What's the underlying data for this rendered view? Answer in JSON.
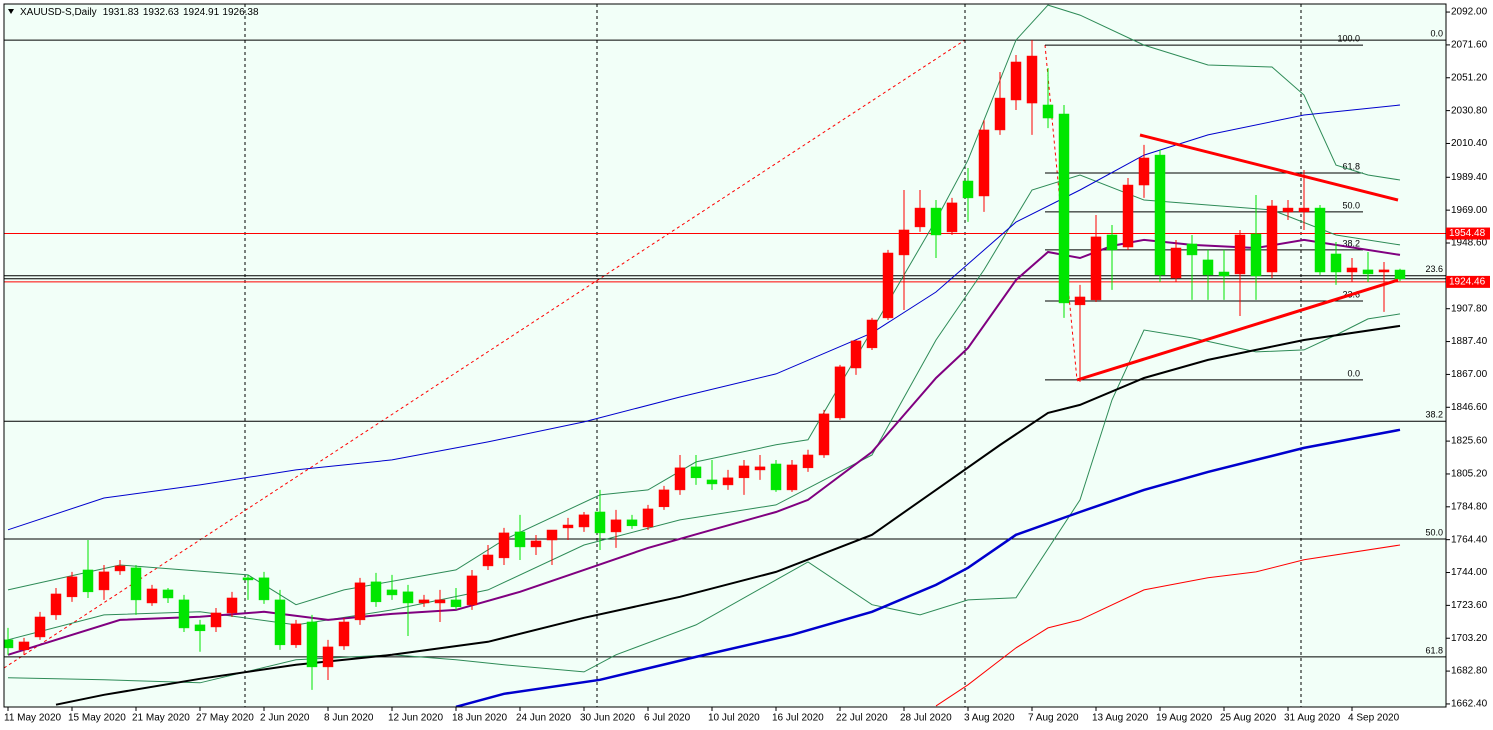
{
  "chart_data": {
    "type": "candlestick",
    "title": "XAUUSD-S,Daily",
    "categories": [
      "11 May 2020",
      null,
      null,
      null,
      "15 May 2020",
      null,
      null,
      null,
      "21 May 2020",
      null,
      null,
      null,
      "27 May 2020",
      null,
      null,
      null,
      "2 Jun 2020",
      null,
      null,
      null,
      "8 Jun 2020",
      null,
      null,
      null,
      "12 Jun 2020",
      null,
      null,
      null,
      "18 Jun 2020",
      null,
      null,
      null,
      "24 Jun 2020",
      null,
      null,
      null,
      "30 Jun 2020",
      null,
      null,
      null,
      "6 Jul 2020",
      null,
      null,
      null,
      "10 Jul 2020",
      null,
      null,
      null,
      "16 Jul 2020",
      null,
      null,
      null,
      "22 Jul 2020",
      null,
      null,
      null,
      "28 Jul 2020",
      null,
      null,
      null,
      "3 Aug 2020",
      null,
      null,
      null,
      "7 Aug 2020",
      null,
      null,
      null,
      "13 Aug 2020",
      null,
      null,
      null,
      "19 Aug 2020",
      null,
      null,
      null,
      "25 Aug 2020",
      null,
      null,
      null,
      "31 Aug 2020",
      null,
      null,
      null,
      "4 Sep 2020",
      null,
      null,
      null
    ],
    "ohlc": {
      "open": [
        1702.2,
        1696.0,
        1704.0,
        1717.7,
        1728.9,
        1745.6,
        1733.2,
        1745.0,
        1746.9,
        1725.1,
        1733.2,
        1727.0,
        1711.5,
        1710.2,
        1718.9,
        1740.7,
        1740.7,
        1727.0,
        1699.1,
        1713.3,
        1685.4,
        1698.4,
        1714.6,
        1738.2,
        1733.2,
        1732.0,
        1725.1,
        1725.1,
        1727.0,
        1723.9,
        1748.1,
        1753.1,
        1769.2,
        1759.9,
        1764.2,
        1771.7,
        1772.3,
        1781.6,
        1769.2,
        1776.7,
        1772.3,
        1784.8,
        1795.3,
        1809.6,
        1801.5,
        1798.4,
        1802.8,
        1807.7,
        1811.4,
        1795.3,
        1809.0,
        1817.0,
        1840.0,
        1871.0,
        1883.5,
        1902.1,
        1941.2,
        1958.6,
        1970.3,
        1955.5,
        1987.1,
        1977.8,
        2018.8,
        2037.4,
        2035.5,
        2034.3,
        2028.7,
        1910.2,
        1913.3,
        1953.6,
        1946.1,
        1984.6,
        2003.2,
        1926.9,
        1948.0,
        1938.1,
        1930.6,
        1929.4,
        1954.2,
        1930.6,
        1967.9,
        1967.9,
        1970.3,
        1941.8,
        1930.6,
        1931.9,
        1930.6,
        1931.83
      ],
      "high": [
        1709.6,
        1703.4,
        1719.6,
        1734.4,
        1744.4,
        1764.2,
        1748.7,
        1751.8,
        1748.7,
        1736.3,
        1734.4,
        1730.1,
        1714.6,
        1722.0,
        1732.0,
        1742.5,
        1744.4,
        1733.2,
        1714.6,
        1717.7,
        1702.2,
        1715.8,
        1740.7,
        1743.8,
        1742.5,
        1736.3,
        1730.1,
        1733.2,
        1734.4,
        1745.6,
        1761.1,
        1771.7,
        1779.8,
        1767.3,
        1770.4,
        1777.9,
        1781.6,
        1795.3,
        1782.9,
        1779.8,
        1786.0,
        1797.8,
        1817.0,
        1817.0,
        1813.9,
        1807.7,
        1813.9,
        1817.0,
        1813.9,
        1813.9,
        1820.2,
        1845.0,
        1872.9,
        1888.4,
        1902.1,
        1944.3,
        1981.5,
        1981.5,
        1975.3,
        1976.6,
        1995.2,
        2024.9,
        2054.8,
        2065.3,
        2074.6,
        2057.3,
        2034.3,
        1922.6,
        1966.0,
        1959.8,
        1989.0,
        2009.5,
        2006.4,
        1950.5,
        1953.6,
        1944.3,
        1944.3,
        1956.7,
        1978.4,
        1975.3,
        1975.3,
        1993.9,
        1972.2,
        1949.2,
        1939.3,
        1943.0,
        1936.8,
        1932.63
      ],
      "low": [
        1692.9,
        1692.9,
        1702.2,
        1714.6,
        1725.8,
        1728.2,
        1727.0,
        1742.5,
        1717.7,
        1723.3,
        1725.1,
        1707.1,
        1694.8,
        1707.1,
        1716.4,
        1727.0,
        1724.5,
        1696.0,
        1697.2,
        1671.1,
        1677.3,
        1696.0,
        1711.5,
        1722.7,
        1727.0,
        1704.6,
        1722.7,
        1713.3,
        1720.8,
        1720.8,
        1745.6,
        1748.7,
        1751.8,
        1754.9,
        1748.7,
        1764.2,
        1769.2,
        1758.0,
        1759.3,
        1771.1,
        1770.4,
        1782.9,
        1792.2,
        1798.4,
        1795.3,
        1795.3,
        1792.2,
        1801.5,
        1794.1,
        1794.1,
        1806.5,
        1815.2,
        1838.8,
        1866.7,
        1882.2,
        1900.8,
        1907.0,
        1955.5,
        1939.3,
        1953.6,
        1961.7,
        1967.9,
        2015.7,
        2031.2,
        2015.7,
        2019.9,
        1902.1,
        1862.4,
        1912.0,
        1919.5,
        1944.3,
        1976.6,
        1924.4,
        1924.4,
        1913.3,
        1913.3,
        1913.3,
        1903.3,
        1913.3,
        1926.9,
        1962.9,
        1956.7,
        1928.8,
        1922.6,
        1924.4,
        1924.4,
        1905.8,
        1924.91
      ],
      "close": [
        1697.2,
        1700.9,
        1716.4,
        1730.7,
        1741.3,
        1732.0,
        1744.4,
        1748.1,
        1727.0,
        1733.8,
        1728.2,
        1709.6,
        1707.8,
        1718.9,
        1728.2,
        1739.4,
        1727.0,
        1699.1,
        1712.1,
        1685.4,
        1697.8,
        1713.3,
        1737.6,
        1725.8,
        1730.1,
        1725.1,
        1727.0,
        1727.0,
        1722.7,
        1741.9,
        1754.9,
        1768.6,
        1759.9,
        1763.6,
        1770.4,
        1773.5,
        1779.8,
        1768.6,
        1776.7,
        1773.0,
        1783.5,
        1795.3,
        1809.0,
        1802.8,
        1799.0,
        1802.8,
        1810.2,
        1809.6,
        1795.3,
        1810.8,
        1817.0,
        1842.5,
        1871.7,
        1887.8,
        1900.8,
        1942.4,
        1956.7,
        1970.3,
        1953.6,
        1973.5,
        1976.6,
        2018.8,
        2038.6,
        2061.0,
        2064.7,
        2026.2,
        1911.4,
        1915.1,
        1952.4,
        1944.3,
        1984.6,
        2001.4,
        1928.8,
        1945.5,
        1941.2,
        1928.8,
        1928.2,
        1953.6,
        1928.2,
        1971.6,
        1970.3,
        1970.3,
        1930.6,
        1930.6,
        1933.1,
        1929.4,
        1931.9,
        1926.38
      ]
    },
    "up_color": "#ff0000",
    "down_color": "#00e600",
    "indicators": [
      {
        "color": "#2e8b57",
        "width": 1,
        "x": [
          0,
          7,
          15,
          18,
          21,
          28,
          31,
          37,
          40,
          43,
          48,
          50,
          54,
          58,
          60,
          63,
          65,
          67,
          71,
          75,
          79,
          81,
          83,
          85,
          87
        ],
        "values": [
          1733.2,
          1748.7,
          1742.5,
          1724.0,
          1733.2,
          1745.6,
          1764.3,
          1792.2,
          1795.3,
          1812.7,
          1823.3,
          1826.4,
          1894.6,
          1962.9,
          2000.1,
          2074.6,
          2096.3,
          2090.1,
          2071.5,
          2059.1,
          2057.9,
          2040.5,
          1997.0,
          1990.8,
          1987.7
        ]
      },
      {
        "color": "#2e8b57",
        "width": 1,
        "x": [
          0,
          6,
          12,
          18,
          24,
          30,
          36,
          42,
          48,
          54,
          58,
          61,
          64,
          67,
          71,
          75,
          79,
          83,
          87
        ],
        "values": [
          1702.2,
          1717.7,
          1719.6,
          1711.5,
          1720.8,
          1733.2,
          1761.1,
          1776.7,
          1786.0,
          1817.0,
          1888.4,
          1931.9,
          1981.5,
          1990.8,
          1975.3,
          1972.2,
          1969.1,
          1953.6,
          1947.4
        ]
      },
      {
        "color": "#2e8b57",
        "width": 1,
        "x": [
          0,
          6,
          12,
          18,
          24,
          28,
          31,
          36,
          38,
          43,
          48,
          50,
          54,
          57,
          60,
          63,
          67,
          69,
          71,
          74,
          78,
          81,
          83,
          85,
          87
        ],
        "values": [
          1678.6,
          1677.4,
          1675.5,
          1689.8,
          1692.9,
          1689.8,
          1686.7,
          1682.3,
          1692.9,
          1711.5,
          1739.4,
          1750.6,
          1724.0,
          1717.7,
          1727.0,
          1728.3,
          1789.1,
          1851.2,
          1894.6,
          1889.7,
          1881.0,
          1882.2,
          1891.5,
          1901.5,
          1904.6
        ]
      },
      {
        "color": "#800080",
        "width": 2,
        "x": [
          0,
          7,
          12,
          16,
          20,
          24,
          28,
          32,
          36,
          40,
          44,
          48,
          50,
          54,
          58,
          60,
          63,
          65,
          67,
          69,
          71,
          74,
          78,
          81,
          87
        ],
        "values": [
          1692.9,
          1714.6,
          1716.5,
          1719.6,
          1714.6,
          1718.3,
          1720.8,
          1732.0,
          1745.6,
          1759.3,
          1770.5,
          1781.6,
          1789.1,
          1818.9,
          1864.8,
          1883.4,
          1925.6,
          1943.0,
          1939.3,
          1946.8,
          1950.5,
          1947.4,
          1945.5,
          1950.5,
          1941.2
        ]
      },
      {
        "color": "#000000",
        "width": 2,
        "x": [
          3,
          6,
          12,
          18,
          24,
          30,
          36,
          42,
          48,
          54,
          58,
          62,
          65,
          67,
          71,
          75,
          78,
          81,
          87
        ],
        "values": [
          1661.9,
          1668.1,
          1678.0,
          1686.7,
          1692.9,
          1701.0,
          1715.9,
          1728.9,
          1744.4,
          1767.4,
          1795.3,
          1823.2,
          1843.1,
          1848.1,
          1864.8,
          1876.0,
          1882.2,
          1888.4,
          1897.1
        ]
      },
      {
        "color": "#0000cd",
        "width": 1,
        "x": [
          0,
          6,
          12,
          18,
          24,
          30,
          36,
          42,
          48,
          54,
          58,
          63,
          67,
          71,
          75,
          81,
          87
        ],
        "values": [
          1770.5,
          1790.3,
          1798.4,
          1807.7,
          1813.9,
          1825.1,
          1837.5,
          1853.0,
          1867.3,
          1892.8,
          1918.2,
          1961.6,
          1981.5,
          2003.2,
          2015.7,
          2028.1,
          2034.3
        ]
      },
      {
        "color": "#0000cd",
        "width": 2.5,
        "x": [
          28,
          31,
          37,
          43,
          49,
          54,
          58,
          60,
          63,
          67,
          71,
          75,
          78,
          81,
          87
        ],
        "values": [
          1660.6,
          1668.7,
          1677.4,
          1691.6,
          1705.3,
          1719.6,
          1736.3,
          1746.9,
          1767.4,
          1781.6,
          1795.3,
          1806.5,
          1813.9,
          1821.4,
          1832.6
        ]
      },
      {
        "color": "#ff0000",
        "width": 1,
        "x": [
          58,
          60,
          63,
          65,
          67,
          71,
          75,
          78,
          81,
          87
        ],
        "values": [
          1661.2,
          1674.3,
          1697.2,
          1709.6,
          1714.6,
          1733.2,
          1740.7,
          1744.4,
          1751.9,
          1761.1
        ]
      }
    ],
    "fibonacci": [
      {
        "levels": [
          {
            "value": 2074.6,
            "label": "0.0"
          },
          {
            "value": 1928.3,
            "label": "23.6"
          },
          {
            "value": 1837.9,
            "label": "38.2"
          },
          {
            "value": 1764.8,
            "label": "50.0"
          },
          {
            "value": 1691.6,
            "label": "61.8"
          }
        ]
      },
      {
        "levels": [
          {
            "value": 2071.5,
            "label": "100.0"
          },
          {
            "value": 1992.1,
            "label": "61.8"
          },
          {
            "value": 1967.9,
            "label": "50.0"
          },
          {
            "value": 1944.3,
            "label": "38.2"
          },
          {
            "value": 1912.6,
            "label": "23.6"
          },
          {
            "value": 1863.6,
            "label": "0.0"
          }
        ]
      }
    ],
    "price_lines": [
      1954.48,
      1924.46
    ],
    "price_line_color": "#ff0000",
    "ylim": [
      1660.5,
      2097
    ],
    "yticks": [
      {
        "value": 2092.0,
        "label": "2092.00"
      },
      {
        "value": 2071.6,
        "label": "2071.60"
      },
      {
        "value": 2051.2,
        "label": "2051.20"
      },
      {
        "value": 2030.8,
        "label": "2030.80"
      },
      {
        "value": 2010.4,
        "label": "2010.40"
      },
      {
        "value": 1989.4,
        "label": "1989.40"
      },
      {
        "value": 1969.0,
        "label": "1969.00"
      },
      {
        "value": 1948.6,
        "label": "1948.60"
      },
      {
        "value": 1907.8,
        "label": "1907.80"
      },
      {
        "value": 1887.4,
        "label": "1887.40"
      },
      {
        "value": 1867.0,
        "label": "1867.00"
      },
      {
        "value": 1846.6,
        "label": "1846.60"
      },
      {
        "value": 1825.6,
        "label": "1825.60"
      },
      {
        "value": 1805.2,
        "label": "1805.20"
      },
      {
        "value": 1784.8,
        "label": "1784.80"
      },
      {
        "value": 1764.4,
        "label": "1764.40"
      },
      {
        "value": 1744.0,
        "label": "1744.00"
      },
      {
        "value": 1723.6,
        "label": "1723.60"
      },
      {
        "value": 1703.2,
        "label": "1703.20"
      },
      {
        "value": 1682.8,
        "label": "1682.80"
      },
      {
        "value": 1662.4,
        "label": "1662.40"
      }
    ]
  }
}
